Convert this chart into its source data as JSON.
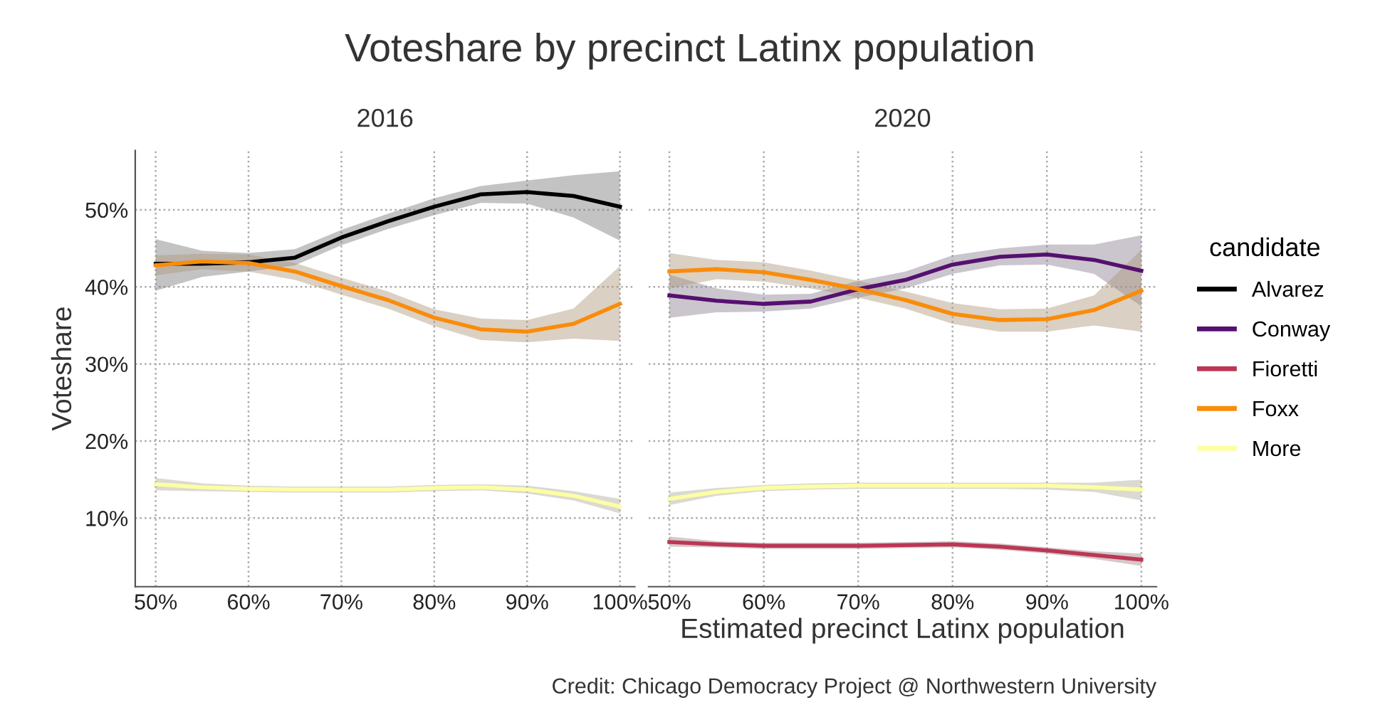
{
  "chart_data": [
    {
      "type": "line",
      "title": "Voteshare by precinct Latinx population",
      "subtitle": "2016",
      "ylabel": "Voteshare",
      "x": [
        50,
        55,
        60,
        65,
        70,
        75,
        80,
        85,
        90,
        95,
        100
      ],
      "xlim": [
        47.8,
        101.6
      ],
      "ylim": [
        1.1,
        57.7
      ],
      "xticks": [
        {
          "value": 50,
          "label": "50%"
        },
        {
          "value": 60,
          "label": "60%"
        },
        {
          "value": 70,
          "label": "70%"
        },
        {
          "value": 80,
          "label": "80%"
        },
        {
          "value": 90,
          "label": "90%"
        },
        {
          "value": 100,
          "label": "100%"
        }
      ],
      "yticks": [
        {
          "value": 10,
          "label": "10%"
        },
        {
          "value": 20,
          "label": "20%"
        },
        {
          "value": 30,
          "label": "30%"
        },
        {
          "value": 40,
          "label": "40%"
        },
        {
          "value": 50,
          "label": "50%"
        }
      ],
      "grid": true,
      "marker": "none",
      "line_style": "solid",
      "legend": "right",
      "series": [
        {
          "name": "Alvarez",
          "color": "#000004",
          "values": [
            43.0,
            43.0,
            43.2,
            43.8,
            46.4,
            48.5,
            50.4,
            52.0,
            52.3,
            51.8,
            50.4
          ],
          "lower": [
            39.5,
            41.3,
            42.0,
            42.8,
            45.4,
            47.5,
            49.3,
            50.9,
            50.8,
            49.0,
            46.0
          ],
          "upper": [
            46.2,
            44.7,
            44.4,
            44.9,
            47.4,
            49.5,
            51.5,
            53.1,
            53.8,
            54.5,
            55.0
          ]
        },
        {
          "name": "Foxx",
          "color": "#f98c0a",
          "values": [
            42.8,
            43.3,
            43.1,
            42.0,
            40.1,
            38.3,
            36.0,
            34.5,
            34.2,
            35.2,
            37.8
          ],
          "lower": [
            41.5,
            42.3,
            42.0,
            40.9,
            39.0,
            37.2,
            34.9,
            33.1,
            32.8,
            33.3,
            33.0
          ],
          "upper": [
            44.1,
            44.3,
            44.2,
            43.1,
            41.2,
            39.4,
            37.1,
            35.9,
            35.7,
            37.2,
            42.7
          ]
        },
        {
          "name": "More",
          "color": "#fcffa4",
          "values": [
            14.4,
            14.0,
            13.8,
            13.7,
            13.7,
            13.7,
            13.9,
            14.0,
            13.7,
            12.9,
            11.5
          ],
          "lower": [
            13.6,
            13.5,
            13.4,
            13.3,
            13.3,
            13.3,
            13.5,
            13.6,
            13.2,
            12.3,
            10.6
          ],
          "upper": [
            15.2,
            14.5,
            14.2,
            14.1,
            14.1,
            14.1,
            14.3,
            14.4,
            14.2,
            13.5,
            12.5
          ]
        }
      ]
    },
    {
      "type": "line",
      "subtitle": "2020",
      "xlabel": "Estimated precinct Latinx population",
      "legend_title": "candidate",
      "legend": "right",
      "annotations": [
        "Credit: Chicago Democracy Project @ Northwestern University"
      ],
      "x": [
        50,
        55,
        60,
        65,
        70,
        75,
        80,
        85,
        90,
        95,
        100
      ],
      "xlim": [
        47.8,
        101.6
      ],
      "ylim": [
        1.1,
        57.7
      ],
      "xticks": [
        {
          "value": 50,
          "label": "50%"
        },
        {
          "value": 60,
          "label": "60%"
        },
        {
          "value": 70,
          "label": "70%"
        },
        {
          "value": 80,
          "label": "80%"
        },
        {
          "value": 90,
          "label": "90%"
        },
        {
          "value": 100,
          "label": "100%"
        }
      ],
      "yticks": [
        {
          "value": 10,
          "label": null
        },
        {
          "value": 20,
          "label": null
        },
        {
          "value": 30,
          "label": null
        },
        {
          "value": 40,
          "label": null
        },
        {
          "value": 50,
          "label": null
        }
      ],
      "tick_labels": "x",
      "grid": true,
      "marker": "none",
      "line_style": "solid",
      "series": [
        {
          "name": "Conway",
          "color": "#56106e",
          "values": [
            38.9,
            38.2,
            37.8,
            38.1,
            39.7,
            40.9,
            42.9,
            43.9,
            44.2,
            43.5,
            42.1
          ],
          "lower": [
            36.0,
            36.7,
            36.8,
            37.2,
            38.6,
            39.8,
            41.7,
            42.8,
            42.9,
            41.7,
            37.5
          ],
          "upper": [
            41.6,
            39.8,
            39.0,
            39.1,
            40.8,
            42.0,
            44.1,
            45.0,
            45.5,
            45.5,
            46.7
          ]
        },
        {
          "name": "Fioretti",
          "color": "#bb3754",
          "values": [
            6.9,
            6.6,
            6.4,
            6.4,
            6.4,
            6.5,
            6.6,
            6.3,
            5.8,
            5.2,
            4.6
          ],
          "lower": [
            6.3,
            6.2,
            6.0,
            6.0,
            6.0,
            6.1,
            6.2,
            5.9,
            5.4,
            4.7,
            3.8
          ],
          "upper": [
            7.6,
            7.0,
            6.8,
            6.8,
            6.8,
            6.9,
            7.0,
            6.7,
            6.2,
            5.7,
            5.4
          ]
        },
        {
          "name": "Foxx",
          "color": "#f98c0a",
          "values": [
            42.0,
            42.3,
            41.9,
            40.9,
            39.7,
            38.3,
            36.5,
            35.7,
            35.8,
            37.0,
            39.5
          ],
          "lower": [
            39.8,
            41.0,
            40.7,
            39.8,
            38.6,
            37.2,
            35.2,
            34.2,
            34.2,
            35.0,
            34.2
          ],
          "upper": [
            44.4,
            43.5,
            43.2,
            42.1,
            40.8,
            39.4,
            37.9,
            37.1,
            37.2,
            38.9,
            44.8
          ]
        },
        {
          "name": "More",
          "color": "#fcffa4",
          "values": [
            12.5,
            13.4,
            13.9,
            14.1,
            14.2,
            14.2,
            14.2,
            14.2,
            14.2,
            14.0,
            13.7
          ],
          "lower": [
            11.7,
            12.9,
            13.5,
            13.7,
            13.8,
            13.8,
            13.8,
            13.8,
            13.7,
            13.4,
            12.3
          ],
          "upper": [
            13.3,
            13.9,
            14.3,
            14.5,
            14.6,
            14.6,
            14.6,
            14.6,
            14.6,
            14.6,
            15.0
          ]
        }
      ]
    }
  ]
}
